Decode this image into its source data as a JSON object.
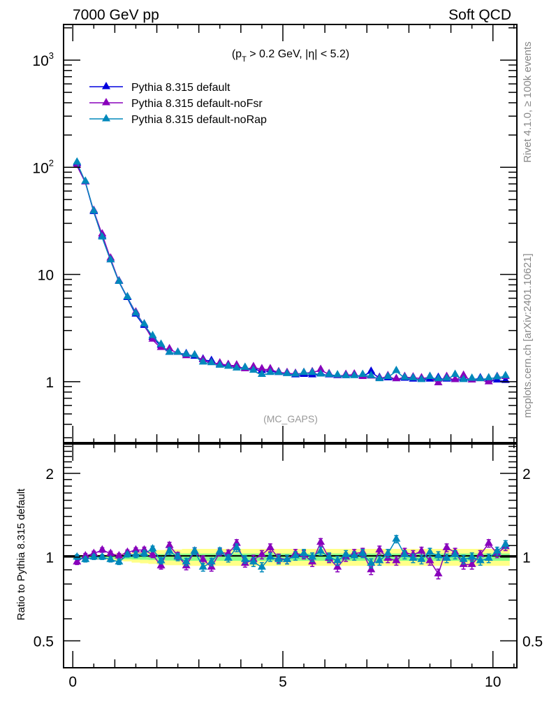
{
  "header": {
    "left_label": "7000 GeV pp",
    "right_label": "Soft QCD"
  },
  "side_labels": {
    "rivet": "Rivet 4.1.0, ≥ 100k events",
    "mcplots": "mcplots.cern.ch [arXiv:2401.10621]"
  },
  "chart_data": [
    {
      "type": "line",
      "panel": "main",
      "title": "(p_T > 0.2 GeV, |η| < 5.2)",
      "title_parts": {
        "open": "(p",
        "sub": "T",
        "rest": " > 0.2 GeV, |η| < 5.2)"
      },
      "annotation": "(MC_GAPS)",
      "xlabel": "",
      "ylabel": "",
      "yscale": "log",
      "xlim": [
        -0.22,
        10.57
      ],
      "ylim": [
        0.27,
        2150
      ],
      "y_tick_labels": [
        {
          "value": 1000,
          "base": "10",
          "exp": "3"
        },
        {
          "value": 100,
          "base": "10",
          "exp": "2"
        },
        {
          "value": 10,
          "base": "10",
          "exp": ""
        },
        {
          "value": 1,
          "base": "1",
          "exp": ""
        }
      ],
      "legend": {
        "position": "top-left"
      },
      "x": [
        0.1,
        0.3,
        0.5,
        0.7,
        0.9,
        1.1,
        1.3,
        1.5,
        1.7,
        1.9,
        2.1,
        2.3,
        2.5,
        2.7,
        2.9,
        3.1,
        3.3,
        3.5,
        3.7,
        3.9,
        4.1,
        4.3,
        4.5,
        4.7,
        4.9,
        5.1,
        5.3,
        5.5,
        5.7,
        5.9,
        6.1,
        6.3,
        6.5,
        6.7,
        6.9,
        7.1,
        7.3,
        7.5,
        7.7,
        7.9,
        8.1,
        8.3,
        8.5,
        8.7,
        8.9,
        9.1,
        9.3,
        9.5,
        9.7,
        9.9,
        10.1,
        10.3
      ],
      "series": [
        {
          "name": "Pythia 8.315 default",
          "color": "#0000dd",
          "values": [
            107,
            72,
            38,
            22.5,
            13.5,
            8.5,
            6.0,
            4.2,
            3.3,
            2.55,
            2.15,
            1.85,
            1.85,
            1.8,
            1.7,
            1.6,
            1.55,
            1.42,
            1.42,
            1.38,
            1.33,
            1.32,
            1.25,
            1.27,
            1.2,
            1.18,
            1.14,
            1.15,
            1.14,
            1.18,
            1.14,
            1.12,
            1.12,
            1.13,
            1.13,
            1.23,
            1.08,
            1.07,
            1.05,
            1.06,
            1.04,
            1.05,
            1.04,
            1.08,
            1.04,
            1.03,
            1.05,
            1.05,
            1.07,
            1.03,
            1.02,
            1.01
          ]
        },
        {
          "name": "Pythia 8.315 default-noFsr",
          "color": "#8800bb",
          "values": [
            103,
            72,
            39,
            23.5,
            14,
            8.6,
            6.1,
            4.4,
            3.4,
            2.45,
            2.05,
            2.0,
            1.85,
            1.72,
            1.75,
            1.58,
            1.49,
            1.47,
            1.42,
            1.41,
            1.3,
            1.36,
            1.3,
            1.3,
            1.22,
            1.2,
            1.18,
            1.2,
            1.22,
            1.28,
            1.17,
            1.13,
            1.15,
            1.16,
            1.1,
            1.11,
            1.07,
            1.12,
            1.05,
            1.1,
            1.09,
            1.07,
            1.1,
            0.96,
            1.1,
            1.03,
            1.13,
            1.02,
            1.05,
            0.98,
            1.1,
            1.1
          ]
        },
        {
          "name": "Pythia 8.315 default-noRap",
          "color": "#0088bb",
          "values": [
            110,
            73,
            38.5,
            22,
            13.5,
            8.5,
            6.1,
            4.3,
            3.4,
            2.65,
            2.2,
            1.85,
            1.85,
            1.78,
            1.75,
            1.5,
            1.48,
            1.4,
            1.37,
            1.32,
            1.34,
            1.26,
            1.15,
            1.2,
            1.2,
            1.17,
            1.16,
            1.2,
            1.2,
            1.16,
            1.15,
            1.14,
            1.12,
            1.12,
            1.15,
            1.12,
            1.05,
            1.1,
            1.25,
            1.08,
            1.07,
            1.03,
            1.1,
            1.05,
            1.06,
            1.15,
            1.03,
            1.06,
            1.05,
            1.07,
            1.09,
            1.12
          ]
        }
      ]
    },
    {
      "type": "line",
      "panel": "ratio",
      "xlabel": "",
      "ylabel": "Ratio to Pythia 8.315 default",
      "yscale": "log",
      "xlim": [
        -0.22,
        10.57
      ],
      "ylim": [
        0.4,
        2.55
      ],
      "y_tick_labels": [
        {
          "value": 2,
          "label": "2"
        },
        {
          "value": 1,
          "label": "1"
        },
        {
          "value": 0.5,
          "label": "0.5"
        }
      ],
      "x_tick_labels": [
        {
          "value": 0,
          "label": "0"
        },
        {
          "value": 5,
          "label": "5"
        },
        {
          "value": 10,
          "label": "10"
        }
      ],
      "reference_line": 1,
      "bands": {
        "inner_color": "#88ff88",
        "outer_color": "#ffff88",
        "inner_halfwidth": [
          0.005,
          0.006,
          0.008,
          0.01,
          0.012,
          0.015,
          0.018,
          0.02,
          0.022,
          0.024,
          0.026,
          0.028,
          0.03,
          0.03,
          0.03,
          0.03,
          0.03,
          0.03,
          0.03,
          0.03,
          0.03,
          0.03,
          0.03,
          0.03,
          0.03,
          0.03,
          0.03,
          0.03,
          0.03,
          0.03,
          0.03,
          0.03,
          0.03,
          0.03,
          0.03,
          0.03,
          0.03,
          0.03,
          0.03,
          0.03,
          0.03,
          0.03,
          0.03,
          0.03,
          0.03,
          0.03,
          0.03,
          0.03,
          0.03,
          0.03,
          0.03,
          0.03
        ],
        "outer_halfwidth": [
          0.01,
          0.012,
          0.015,
          0.02,
          0.025,
          0.03,
          0.035,
          0.045,
          0.05,
          0.055,
          0.06,
          0.065,
          0.065,
          0.07,
          0.07,
          0.07,
          0.07,
          0.07,
          0.07,
          0.07,
          0.07,
          0.07,
          0.07,
          0.07,
          0.07,
          0.07,
          0.07,
          0.07,
          0.07,
          0.07,
          0.07,
          0.07,
          0.07,
          0.07,
          0.07,
          0.07,
          0.07,
          0.07,
          0.07,
          0.07,
          0.07,
          0.07,
          0.07,
          0.07,
          0.07,
          0.07,
          0.07,
          0.07,
          0.07,
          0.07,
          0.07,
          0.07
        ]
      },
      "series": [
        {
          "name": "Pythia 8.315 default-noFsr",
          "color": "#8800bb",
          "values": [
            0.96,
            1.01,
            1.03,
            1.06,
            1.03,
            1.01,
            1.04,
            1.06,
            1.06,
            1.02,
            0.93,
            1.1,
            1.01,
            0.93,
            1.05,
            0.98,
            0.92,
            1.04,
            1.03,
            1.12,
            0.95,
            0.98,
            1.02,
            1.08,
            0.99,
            0.98,
            1.03,
            1.02,
            0.96,
            1.13,
            0.99,
            0.92,
            1.0,
            1.03,
            1.04,
            0.9,
            1.06,
            0.99,
            0.97,
            1.04,
            1.02,
            1.05,
            0.97,
            0.87,
            1.08,
            1.04,
            0.94,
            0.94,
            1.02,
            1.12,
            1.03,
            1.09
          ],
          "errors": [
            0.02,
            0.02,
            0.02,
            0.02,
            0.02,
            0.02,
            0.02,
            0.02,
            0.025,
            0.025,
            0.025,
            0.03,
            0.03,
            0.03,
            0.03,
            0.03,
            0.03,
            0.03,
            0.03,
            0.035,
            0.03,
            0.035,
            0.035,
            0.035,
            0.035,
            0.035,
            0.035,
            0.035,
            0.035,
            0.035,
            0.035,
            0.035,
            0.035,
            0.035,
            0.035,
            0.035,
            0.035,
            0.035,
            0.035,
            0.035,
            0.035,
            0.035,
            0.035,
            0.035,
            0.035,
            0.035,
            0.035,
            0.035,
            0.035,
            0.035,
            0.035,
            0.035
          ]
        },
        {
          "name": "Pythia 8.315 default-noRap",
          "color": "#0088bb",
          "values": [
            1.0,
            0.98,
            1.0,
            1.0,
            0.98,
            0.96,
            1.02,
            1.02,
            1.03,
            1.07,
            0.97,
            1.05,
            1.0,
            0.96,
            1.05,
            0.92,
            0.96,
            1.05,
            0.99,
            1.08,
            0.98,
            0.96,
            0.92,
            1.0,
            0.98,
            0.98,
            1.01,
            1.03,
            1.0,
            1.05,
            1.0,
            0.97,
            1.02,
            1.01,
            1.03,
            0.95,
            0.97,
            1.03,
            1.16,
            1.02,
            0.99,
            0.98,
            1.04,
            1.01,
            0.99,
            1.02,
            0.98,
            1.0,
            0.97,
            0.99,
            1.05,
            1.11
          ],
          "errors": [
            0.02,
            0.02,
            0.02,
            0.02,
            0.02,
            0.02,
            0.02,
            0.025,
            0.025,
            0.025,
            0.025,
            0.03,
            0.03,
            0.03,
            0.03,
            0.03,
            0.03,
            0.03,
            0.03,
            0.035,
            0.03,
            0.035,
            0.035,
            0.035,
            0.035,
            0.035,
            0.035,
            0.035,
            0.035,
            0.035,
            0.035,
            0.035,
            0.035,
            0.035,
            0.035,
            0.035,
            0.035,
            0.035,
            0.035,
            0.035,
            0.035,
            0.035,
            0.035,
            0.035,
            0.035,
            0.035,
            0.035,
            0.035,
            0.035,
            0.035,
            0.035,
            0.035
          ]
        }
      ]
    }
  ]
}
